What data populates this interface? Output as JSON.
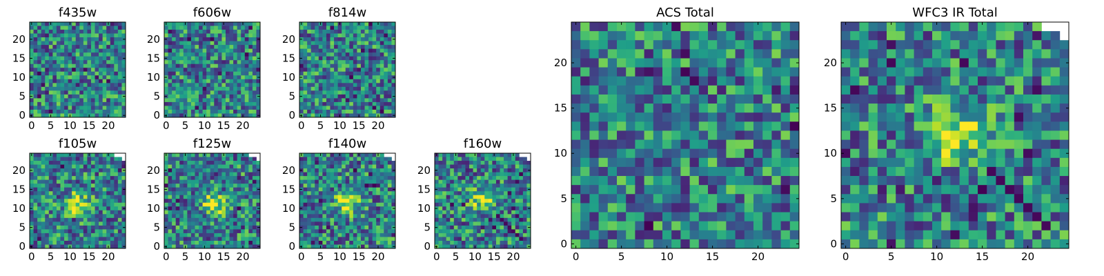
{
  "chart_data": {
    "type": "heatmap",
    "colormap": "viridis",
    "panels": [
      {
        "id": "f435w",
        "title": "f435w",
        "grid": 25,
        "missing_corner": false,
        "source_blob": null,
        "artifacts": false,
        "xticks": [
          0,
          5,
          10,
          15,
          20
        ],
        "yticks": [
          0,
          5,
          10,
          15,
          20
        ],
        "xlim": [
          0,
          25
        ],
        "ylim": [
          0,
          25
        ]
      },
      {
        "id": "f606w",
        "title": "f606w",
        "grid": 25,
        "missing_corner": false,
        "source_blob": null,
        "artifacts": false,
        "xticks": [
          0,
          5,
          10,
          15,
          20
        ],
        "yticks": [
          0,
          5,
          10,
          15,
          20
        ],
        "xlim": [
          0,
          25
        ],
        "ylim": [
          0,
          25
        ]
      },
      {
        "id": "f814w",
        "title": "f814w",
        "grid": 25,
        "missing_corner": false,
        "source_blob": null,
        "artifacts": false,
        "xticks": [
          0,
          5,
          10,
          15,
          20
        ],
        "yticks": [
          0,
          5,
          10,
          15,
          20
        ],
        "xlim": [
          0,
          25
        ],
        "ylim": [
          0,
          25
        ]
      },
      {
        "id": "f105w",
        "title": "f105w",
        "grid": 25,
        "missing_corner": true,
        "source_blob": [
          12,
          11
        ],
        "artifacts": false,
        "xticks": [
          0,
          5,
          10,
          15,
          20
        ],
        "yticks": [
          0,
          5,
          10,
          15,
          20
        ],
        "xlim": [
          0,
          25
        ],
        "ylim": [
          0,
          25
        ]
      },
      {
        "id": "f125w",
        "title": "f125w",
        "grid": 25,
        "missing_corner": true,
        "source_blob": [
          12,
          11
        ],
        "artifacts": false,
        "xticks": [
          0,
          5,
          10,
          15,
          20
        ],
        "yticks": [
          0,
          5,
          10,
          15,
          20
        ],
        "xlim": [
          0,
          25
        ],
        "ylim": [
          0,
          25
        ]
      },
      {
        "id": "f140w",
        "title": "f140w",
        "grid": 25,
        "missing_corner": true,
        "source_blob": [
          12,
          11
        ],
        "artifacts": false,
        "xticks": [
          0,
          5,
          10,
          15,
          20
        ],
        "yticks": [
          0,
          5,
          10,
          15,
          20
        ],
        "xlim": [
          0,
          25
        ],
        "ylim": [
          0,
          25
        ]
      },
      {
        "id": "f160w",
        "title": "f160w",
        "grid": 25,
        "missing_corner": true,
        "source_blob": [
          12,
          12
        ],
        "artifacts": true,
        "xticks": [
          0,
          5,
          10,
          15,
          20
        ],
        "yticks": [
          0,
          5,
          10,
          15,
          20
        ],
        "xlim": [
          0,
          25
        ],
        "ylim": [
          0,
          25
        ]
      },
      {
        "id": "acs_total",
        "title": "ACS Total",
        "grid": 25,
        "missing_corner": false,
        "source_blob": null,
        "artifacts": false,
        "xticks": [
          0,
          5,
          10,
          15,
          20
        ],
        "yticks": [
          0,
          5,
          10,
          15,
          20
        ],
        "xlim": [
          0,
          25
        ],
        "ylim": [
          0,
          25
        ]
      },
      {
        "id": "wfc3_ir_total",
        "title": "WFC3 IR Total",
        "grid": 25,
        "missing_corner": true,
        "source_blob": [
          12,
          12
        ],
        "artifacts": true,
        "xticks": [
          0,
          5,
          10,
          15,
          20
        ],
        "yticks": [
          0,
          5,
          10,
          15,
          20
        ],
        "xlim": [
          0,
          25
        ],
        "ylim": [
          0,
          25
        ]
      }
    ]
  }
}
